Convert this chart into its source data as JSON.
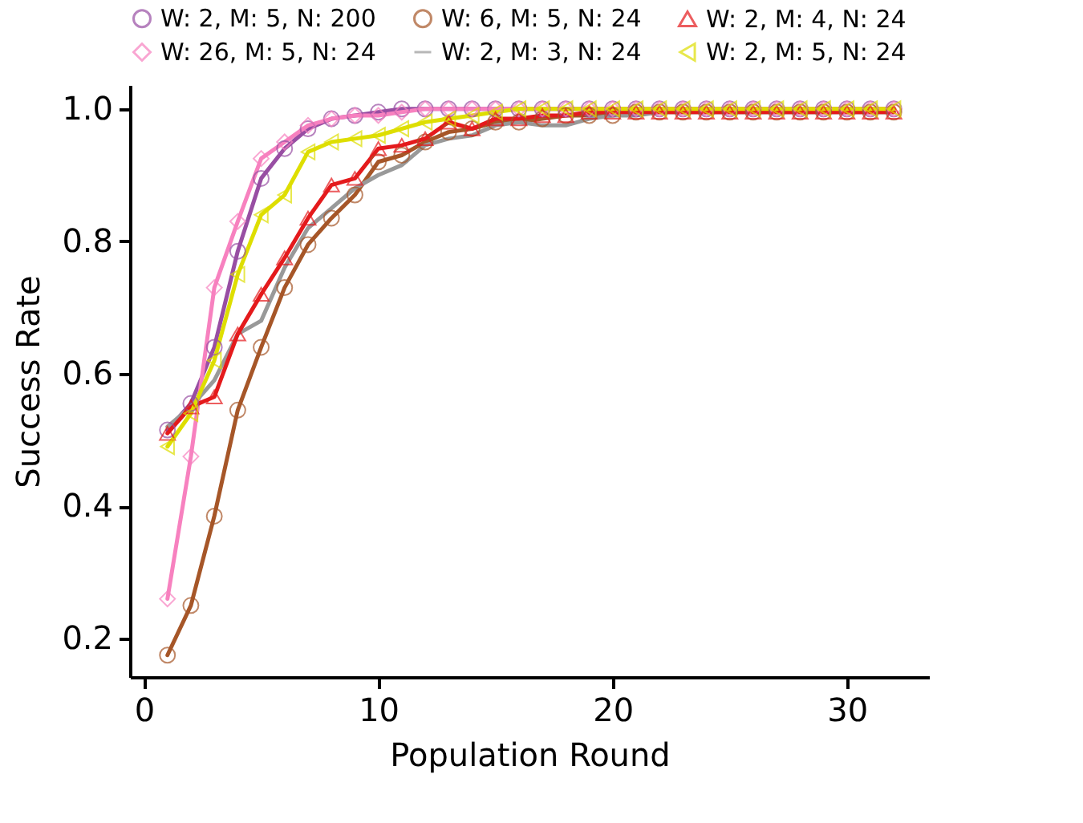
{
  "chart_data": {
    "type": "line",
    "xlabel": "Population Round",
    "ylabel": "Success Rate",
    "xlim": [
      -0.6,
      33.5
    ],
    "ylim": [
      0.142,
      1.036
    ],
    "xticks": [
      0,
      10,
      20,
      30
    ],
    "yticks": [
      0.2,
      0.4,
      0.6,
      0.8,
      {
        "value": 1,
        "label": "1.0"
      }
    ],
    "grid": false,
    "legend": "top",
    "line_style": "solid",
    "x": [
      1,
      2,
      3,
      4,
      5,
      6,
      7,
      8,
      9,
      10,
      11,
      12,
      13,
      14,
      15,
      16,
      17,
      18,
      19,
      20,
      21,
      22,
      23,
      24,
      25,
      26,
      27,
      28,
      29,
      30,
      31,
      32
    ],
    "series": [
      {
        "name": "W: 2, M: 5, N: 200",
        "color": "#984ea3",
        "marker": "circle",
        "values": [
          0.515,
          0.555,
          0.64,
          0.785,
          0.895,
          0.94,
          0.97,
          0.985,
          0.99,
          0.995,
          1.0,
          1.0,
          1.0,
          1.0,
          1.0,
          1.0,
          1.0,
          1.0,
          1.0,
          1.0,
          1.0,
          1.0,
          1.0,
          1.0,
          1.0,
          1.0,
          1.0,
          1.0,
          1.0,
          1.0,
          1.0,
          1.0
        ]
      },
      {
        "name": "W: 26, M: 5, N: 24",
        "color": "#f781bf",
        "marker": "diamond",
        "values": [
          0.26,
          0.475,
          0.73,
          0.83,
          0.925,
          0.95,
          0.975,
          0.985,
          0.99,
          0.99,
          0.995,
          1.0,
          1.0,
          1.0,
          1.0,
          1.0,
          1.0,
          1.0,
          1.0,
          1.0,
          1.0,
          1.0,
          1.0,
          1.0,
          1.0,
          1.0,
          1.0,
          1.0,
          1.0,
          1.0,
          1.0,
          1.0
        ]
      },
      {
        "name": "W: 6, M: 5, N: 24",
        "color": "#a65628",
        "marker": "circle",
        "values": [
          0.175,
          0.25,
          0.385,
          0.545,
          0.64,
          0.73,
          0.795,
          0.835,
          0.87,
          0.92,
          0.93,
          0.95,
          0.965,
          0.97,
          0.98,
          0.98,
          0.985,
          0.99,
          0.99,
          0.99,
          0.995,
          0.995,
          0.995,
          0.995,
          0.995,
          0.995,
          0.995,
          0.995,
          0.995,
          0.995,
          0.995,
          0.995
        ]
      },
      {
        "name": "W: 2, M: 3, N: 24",
        "color": "#999999",
        "marker": "none",
        "values": [
          0.52,
          0.55,
          0.59,
          0.66,
          0.68,
          0.76,
          0.82,
          0.85,
          0.88,
          0.9,
          0.915,
          0.945,
          0.955,
          0.96,
          0.975,
          0.98,
          0.975,
          0.975,
          0.985,
          0.99,
          0.99,
          0.995,
          0.995,
          0.995,
          0.995,
          0.995,
          0.995,
          0.995,
          0.995,
          0.995,
          0.995,
          0.995
        ]
      },
      {
        "name": "W: 2, M: 4, N: 24",
        "color": "#e41a1c",
        "marker": "triangle",
        "values": [
          0.51,
          0.55,
          0.565,
          0.66,
          0.72,
          0.775,
          0.835,
          0.885,
          0.895,
          0.94,
          0.945,
          0.955,
          0.98,
          0.97,
          0.985,
          0.985,
          0.99,
          0.99,
          0.995,
          0.995,
          0.995,
          0.995,
          0.995,
          0.995,
          0.995,
          0.995,
          0.995,
          0.995,
          0.995,
          0.995,
          0.995,
          0.995
        ]
      },
      {
        "name": "W: 2, M: 5, N: 24",
        "color": "#dede00",
        "marker": "triangle-left",
        "values": [
          0.49,
          0.54,
          0.62,
          0.75,
          0.84,
          0.87,
          0.935,
          0.95,
          0.955,
          0.96,
          0.97,
          0.98,
          0.985,
          0.99,
          0.995,
          1.0,
          1.0,
          1.0,
          1.0,
          1.0,
          1.0,
          1.0,
          1.0,
          1.0,
          1.0,
          1.0,
          1.0,
          1.0,
          1.0,
          1.0,
          1.0,
          1.0
        ]
      }
    ]
  }
}
